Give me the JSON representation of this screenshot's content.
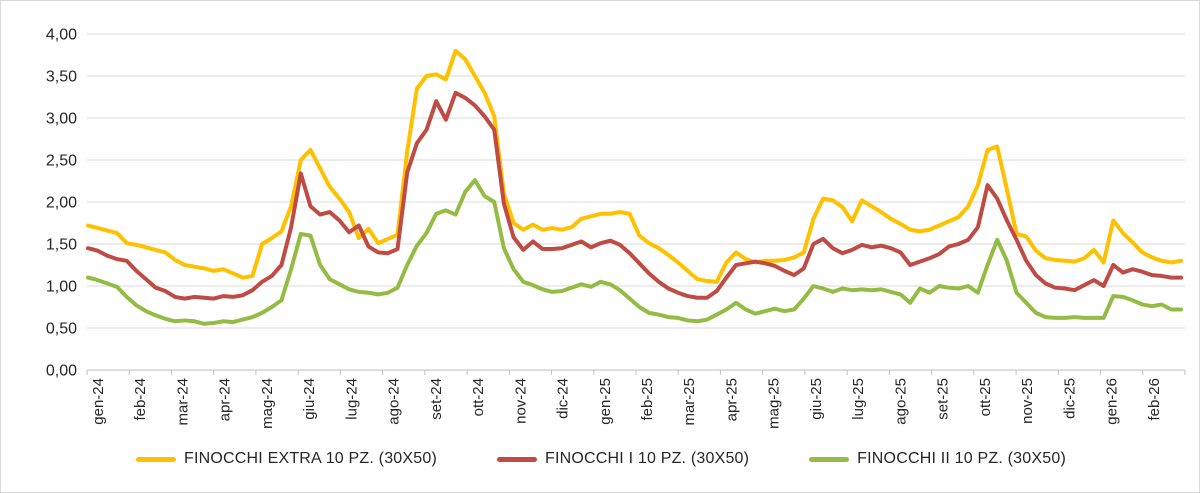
{
  "chart_data": {
    "type": "line",
    "title": "",
    "xlabel": "",
    "ylabel": "",
    "ylim": [
      0,
      4
    ],
    "y_step": 0.5,
    "grid": true,
    "legend_position": "bottom",
    "y_tick_labels": [
      "0,00",
      "0,50",
      "1,00",
      "1,50",
      "2,00",
      "2,50",
      "3,00",
      "3,50",
      "4,00"
    ],
    "x_labels": [
      "gen-24",
      "feb-24",
      "mar-24",
      "apr-24",
      "mag-24",
      "giu-24",
      "lug-24",
      "ago-24",
      "set-24",
      "ott-24",
      "nov-24",
      "dic-24",
      "gen-25",
      "feb-25",
      "mar-25",
      "apr-25",
      "mag-25",
      "giu-25",
      "lug-25",
      "ago-25",
      "set-25",
      "ott-25",
      "nov-25",
      "dic-25",
      "gen-26",
      "feb-26"
    ],
    "x_resolution": "weekly points spanning the labelled months",
    "series": [
      {
        "name": "FINOCCHI EXTRA 10 PZ. (30X50)",
        "color": "#FFC000",
        "values": [
          1.72,
          1.69,
          1.66,
          1.63,
          1.51,
          1.49,
          1.46,
          1.43,
          1.4,
          1.31,
          1.25,
          1.23,
          1.21,
          1.18,
          1.2,
          1.15,
          1.1,
          1.12,
          1.5,
          1.57,
          1.65,
          1.95,
          2.5,
          2.62,
          2.4,
          2.18,
          2.04,
          1.88,
          1.57,
          1.68,
          1.51,
          1.56,
          1.61,
          2.6,
          3.35,
          3.5,
          3.52,
          3.46,
          3.8,
          3.7,
          3.5,
          3.3,
          3.02,
          2.1,
          1.75,
          1.67,
          1.73,
          1.67,
          1.69,
          1.67,
          1.7,
          1.8,
          1.83,
          1.86,
          1.86,
          1.88,
          1.86,
          1.6,
          1.51,
          1.45,
          1.37,
          1.28,
          1.18,
          1.08,
          1.06,
          1.05,
          1.28,
          1.4,
          1.32,
          1.28,
          1.3,
          1.3,
          1.31,
          1.34,
          1.4,
          1.8,
          2.04,
          2.02,
          1.94,
          1.77,
          2.02,
          1.95,
          1.88,
          1.8,
          1.74,
          1.67,
          1.65,
          1.67,
          1.72,
          1.77,
          1.82,
          1.95,
          2.2,
          2.62,
          2.66,
          2.15,
          1.62,
          1.59,
          1.42,
          1.33,
          1.31,
          1.3,
          1.29,
          1.33,
          1.43,
          1.28,
          1.78,
          1.63,
          1.52,
          1.4,
          1.34,
          1.3,
          1.28,
          1.3
        ]
      },
      {
        "name": "FINOCCHI I 10 PZ. (30X50)",
        "color": "#BE4B44",
        "values": [
          1.45,
          1.42,
          1.36,
          1.32,
          1.3,
          1.18,
          1.08,
          0.98,
          0.94,
          0.87,
          0.85,
          0.87,
          0.86,
          0.85,
          0.88,
          0.87,
          0.89,
          0.95,
          1.05,
          1.12,
          1.25,
          1.7,
          2.34,
          1.95,
          1.85,
          1.88,
          1.78,
          1.64,
          1.72,
          1.47,
          1.4,
          1.39,
          1.44,
          2.35,
          2.7,
          2.86,
          3.2,
          2.98,
          3.3,
          3.24,
          3.15,
          3.02,
          2.86,
          1.98,
          1.58,
          1.43,
          1.53,
          1.44,
          1.44,
          1.45,
          1.49,
          1.53,
          1.46,
          1.51,
          1.54,
          1.49,
          1.39,
          1.27,
          1.15,
          1.05,
          0.97,
          0.92,
          0.88,
          0.86,
          0.86,
          0.94,
          1.1,
          1.25,
          1.27,
          1.29,
          1.27,
          1.24,
          1.18,
          1.13,
          1.21,
          1.5,
          1.56,
          1.45,
          1.39,
          1.43,
          1.49,
          1.46,
          1.48,
          1.45,
          1.4,
          1.25,
          1.29,
          1.33,
          1.38,
          1.47,
          1.5,
          1.55,
          1.7,
          2.2,
          2.04,
          1.78,
          1.55,
          1.3,
          1.13,
          1.03,
          0.98,
          0.97,
          0.95,
          1.01,
          1.07,
          1.0,
          1.25,
          1.16,
          1.2,
          1.17,
          1.13,
          1.12,
          1.1,
          1.1
        ]
      },
      {
        "name": "FINOCCHI II 10 PZ. (30X50)",
        "color": "#94BC44",
        "values": [
          1.1,
          1.07,
          1.03,
          0.99,
          0.87,
          0.77,
          0.7,
          0.65,
          0.61,
          0.58,
          0.59,
          0.58,
          0.55,
          0.56,
          0.58,
          0.57,
          0.6,
          0.63,
          0.68,
          0.75,
          0.83,
          1.2,
          1.62,
          1.6,
          1.25,
          1.08,
          1.02,
          0.96,
          0.93,
          0.92,
          0.9,
          0.92,
          0.98,
          1.25,
          1.48,
          1.63,
          1.86,
          1.9,
          1.85,
          2.12,
          2.26,
          2.07,
          2.0,
          1.45,
          1.2,
          1.05,
          1.01,
          0.96,
          0.93,
          0.94,
          0.98,
          1.02,
          0.99,
          1.05,
          1.02,
          0.95,
          0.85,
          0.75,
          0.68,
          0.66,
          0.63,
          0.62,
          0.59,
          0.58,
          0.6,
          0.66,
          0.72,
          0.8,
          0.72,
          0.67,
          0.7,
          0.73,
          0.7,
          0.72,
          0.85,
          1.0,
          0.97,
          0.93,
          0.97,
          0.95,
          0.96,
          0.95,
          0.96,
          0.93,
          0.9,
          0.8,
          0.97,
          0.92,
          1.0,
          0.98,
          0.97,
          1.0,
          0.92,
          1.25,
          1.55,
          1.3,
          0.92,
          0.8,
          0.68,
          0.63,
          0.62,
          0.62,
          0.63,
          0.62,
          0.62,
          0.62,
          0.88,
          0.87,
          0.83,
          0.78,
          0.76,
          0.78,
          0.72,
          0.72
        ]
      }
    ],
    "colors": {
      "grid": "#D9D9D9",
      "axis": "#BFBFBF",
      "text": "#262626",
      "background": "#FFFFFF",
      "border": "#D9D9D9"
    }
  }
}
